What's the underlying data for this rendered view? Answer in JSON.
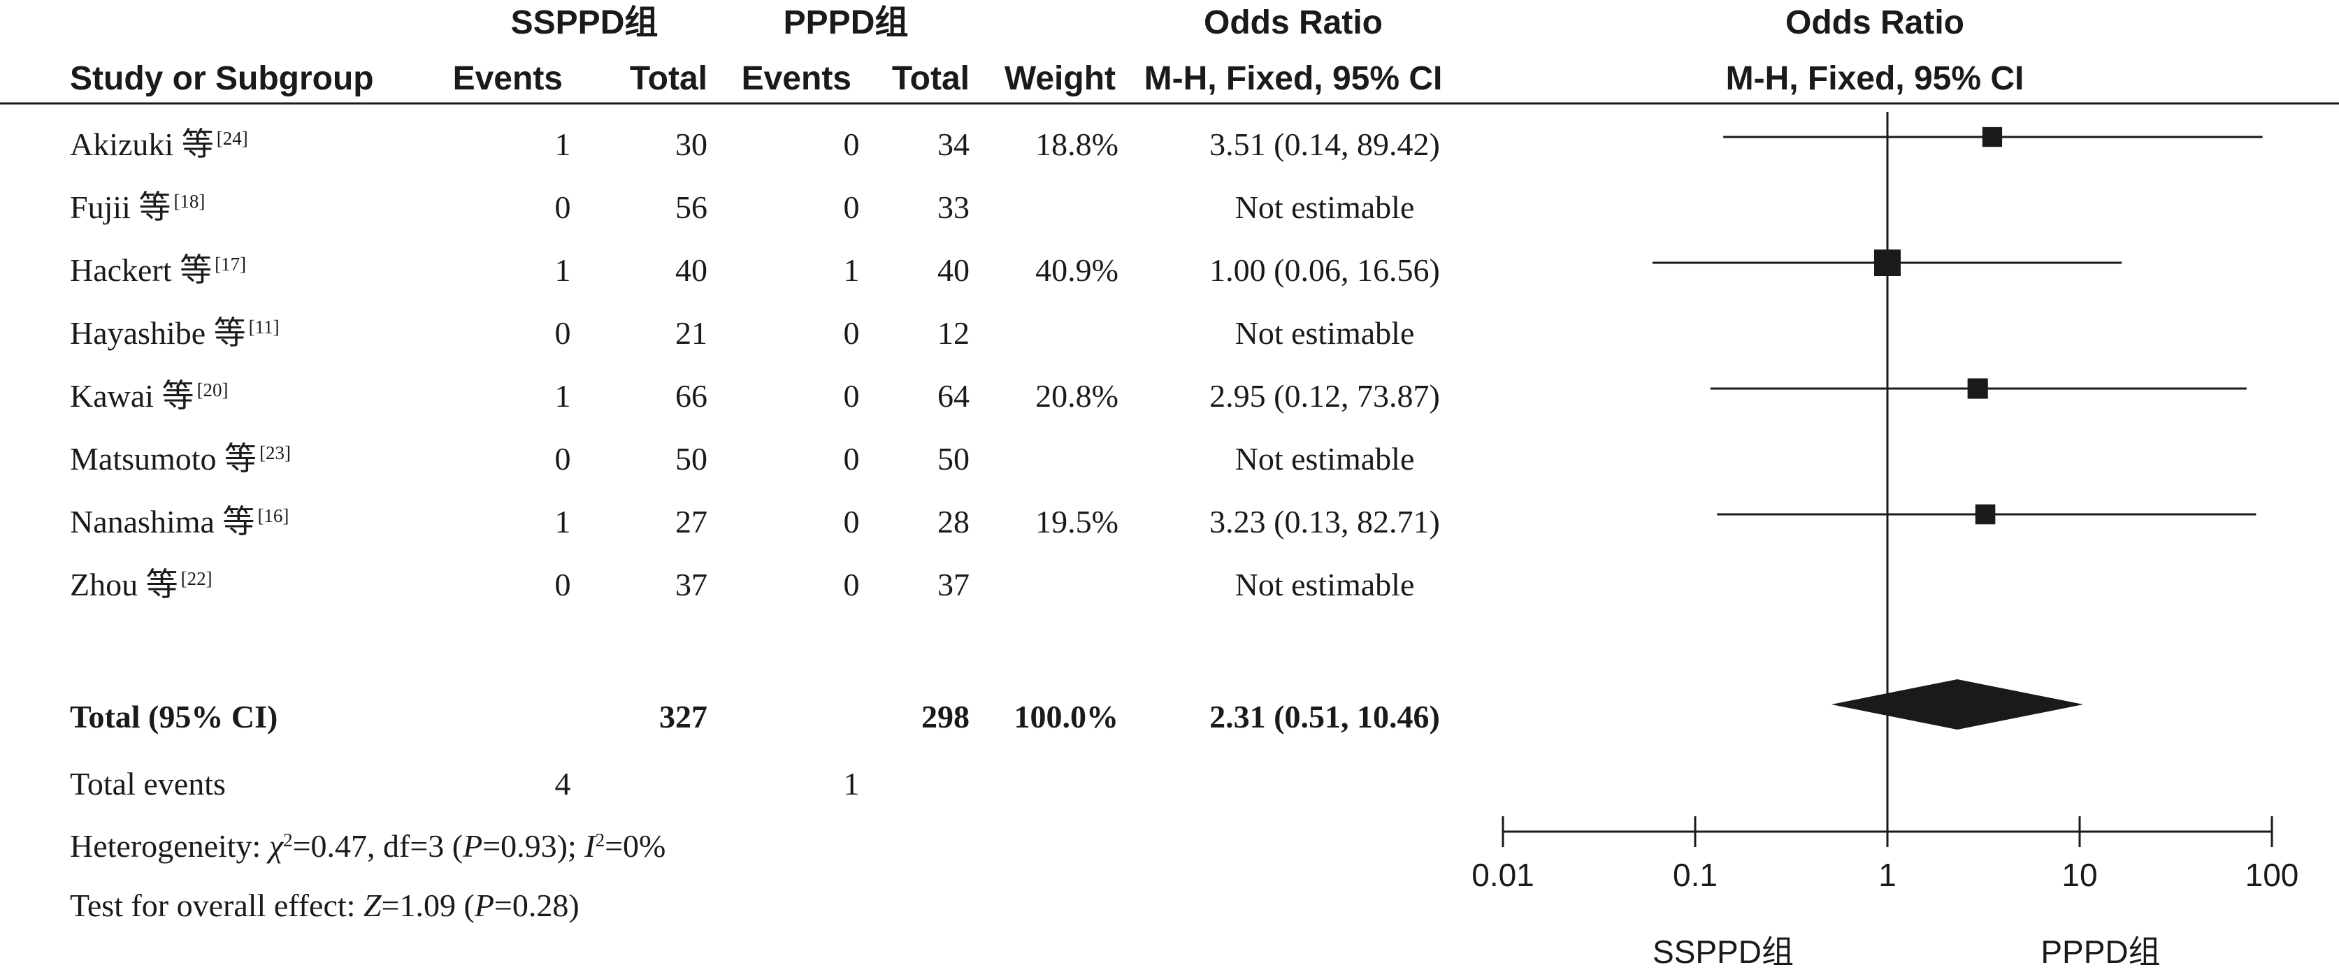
{
  "header": {
    "group1": "SSPPD组",
    "group2": "PPPD组",
    "or_title": "Odds Ratio",
    "or_method": "M-H, Fixed, 95% CI",
    "plot_title": "Odds Ratio",
    "plot_method": "M-H, Fixed, 95% CI",
    "study": "Study or Subgroup",
    "events": "Events",
    "total": "Total",
    "weight": "Weight"
  },
  "chart_data": {
    "type": "forest",
    "x_scale": "log",
    "xlim": [
      0.01,
      100
    ],
    "ticks": [
      0.01,
      0.1,
      1,
      10,
      100
    ],
    "tick_labels": [
      "0.01",
      "0.1",
      "1",
      "10",
      "100"
    ],
    "reference_line": 1,
    "favours_left": "SSPPD组",
    "favours_right": "PPPD组",
    "studies": [
      {
        "name": "Akizuki 等",
        "ref": "[24]",
        "e1": "1",
        "n1": "30",
        "e2": "0",
        "n2": "34",
        "weight": "18.8%",
        "or_text": "3.51 (0.14, 89.42)",
        "or": 3.51,
        "lo": 0.14,
        "hi": 89.42
      },
      {
        "name": "Fujii 等",
        "ref": "[18]",
        "e1": "0",
        "n1": "56",
        "e2": "0",
        "n2": "33",
        "weight": "",
        "or_text": "Not estimable",
        "or": null,
        "lo": null,
        "hi": null
      },
      {
        "name": "Hackert 等",
        "ref": "[17]",
        "e1": "1",
        "n1": "40",
        "e2": "1",
        "n2": "40",
        "weight": "40.9%",
        "or_text": "1.00 (0.06, 16.56)",
        "or": 1.0,
        "lo": 0.06,
        "hi": 16.56
      },
      {
        "name": "Hayashibe 等",
        "ref": "[11]",
        "e1": "0",
        "n1": "21",
        "e2": "0",
        "n2": "12",
        "weight": "",
        "or_text": "Not estimable",
        "or": null,
        "lo": null,
        "hi": null
      },
      {
        "name": "Kawai 等",
        "ref": "[20]",
        "e1": "1",
        "n1": "66",
        "e2": "0",
        "n2": "64",
        "weight": "20.8%",
        "or_text": "2.95 (0.12, 73.87)",
        "or": 2.95,
        "lo": 0.12,
        "hi": 73.87
      },
      {
        "name": "Matsumoto 等",
        "ref": "[23]",
        "e1": "0",
        "n1": "50",
        "e2": "0",
        "n2": "50",
        "weight": "",
        "or_text": "Not estimable",
        "or": null,
        "lo": null,
        "hi": null
      },
      {
        "name": "Nanashima 等",
        "ref": "[16]",
        "e1": "1",
        "n1": "27",
        "e2": "0",
        "n2": "28",
        "weight": "19.5%",
        "or_text": "3.23 (0.13, 82.71)",
        "or": 3.23,
        "lo": 0.13,
        "hi": 82.71
      },
      {
        "name": "Zhou 等",
        "ref": "[22]",
        "e1": "0",
        "n1": "37",
        "e2": "0",
        "n2": "37",
        "weight": "",
        "or_text": "Not estimable",
        "or": null,
        "lo": null,
        "hi": null
      }
    ],
    "total": {
      "label": "Total (95% CI)",
      "n1": "327",
      "n2": "298",
      "weight": "100.0%",
      "or_text": "2.31 (0.51, 10.46)",
      "or": 2.31,
      "lo": 0.51,
      "hi": 10.46
    },
    "total_events": {
      "label": "Total events",
      "e1": "4",
      "e2": "1"
    },
    "heterogeneity": {
      "prefix": "Heterogeneity: ",
      "chi": "χ",
      "chi_sup": "2",
      "chi_val": "=0.47, df=3 (",
      "p1_sym": "P",
      "p1_val": "=0.93); ",
      "i_sym": "I",
      "i_sup": "2",
      "i_val": "=0%"
    },
    "overall": {
      "prefix": "Test for overall effect: ",
      "z_sym": "Z",
      "z_val": "=1.09 (",
      "p_sym": "P",
      "p_val": "=0.28)"
    }
  }
}
